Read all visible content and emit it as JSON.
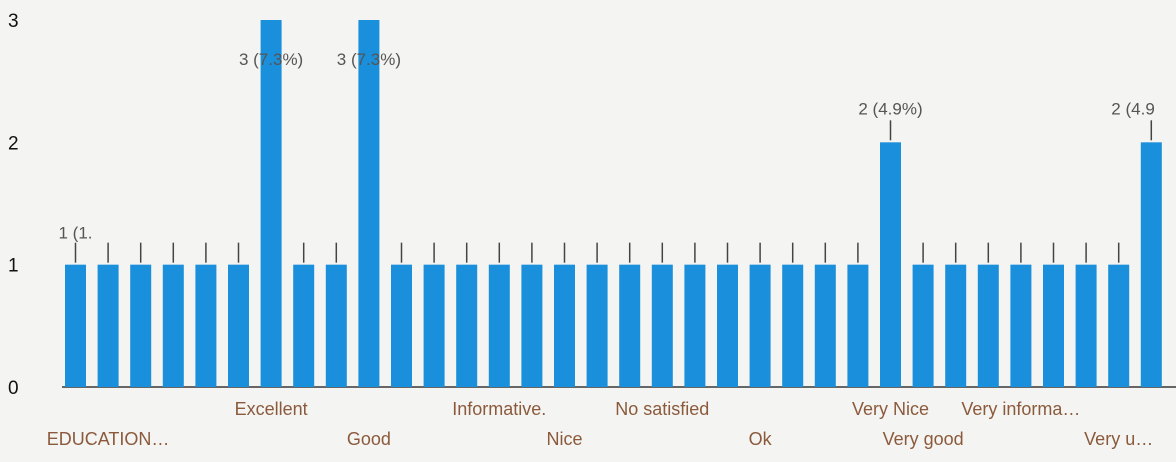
{
  "chart_data": {
    "type": "bar",
    "title": "",
    "xlabel": "",
    "ylabel": "",
    "ylim": [
      0,
      3
    ],
    "y_ticks": [
      "0",
      "1",
      "2",
      "3"
    ],
    "grid": false,
    "bar_color": "#1a8fdc",
    "label_color": "#555555",
    "x_label_color": "#8b5a3c",
    "values": [
      1,
      1,
      1,
      1,
      1,
      1,
      3,
      1,
      1,
      3,
      1,
      1,
      1,
      1,
      1,
      1,
      1,
      1,
      1,
      1,
      1,
      1,
      1,
      1,
      1,
      2,
      1,
      1,
      1,
      1,
      1,
      1,
      1,
      2
    ],
    "value_labels": {
      "0": "1 (1.",
      "6": "3 (7.3%)",
      "9": "3 (7.3%)",
      "25": "2 (4.9%)",
      "33": "2 (4.9"
    },
    "category_labels": [
      {
        "bar": 1,
        "row": 2,
        "text": "EDUCATION…"
      },
      {
        "bar": 6,
        "row": 1,
        "text": "Excellent"
      },
      {
        "bar": 9,
        "row": 2,
        "text": "Good"
      },
      {
        "bar": 13,
        "row": 1,
        "text": "Informative."
      },
      {
        "bar": 15,
        "row": 2,
        "text": "Nice"
      },
      {
        "bar": 18,
        "row": 1,
        "text": "No satisfied"
      },
      {
        "bar": 21,
        "row": 2,
        "text": "Ok"
      },
      {
        "bar": 25,
        "row": 1,
        "text": "Very Nice"
      },
      {
        "bar": 26,
        "row": 2,
        "text": "Very good"
      },
      {
        "bar": 29,
        "row": 1,
        "text": "Very informa…"
      },
      {
        "bar": 32,
        "row": 2,
        "text": "Very u…"
      }
    ]
  }
}
